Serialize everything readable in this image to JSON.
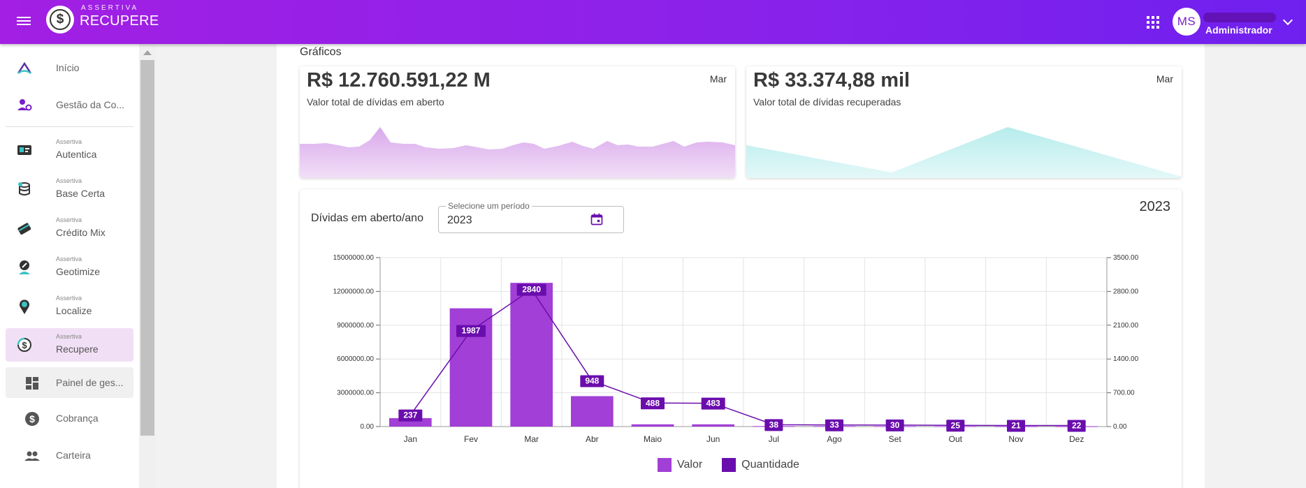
{
  "header": {
    "brand_top": "ASSERTIVA",
    "brand_main": "RECUPERE",
    "avatar_initials": "MS",
    "user_role": "Administrador"
  },
  "sidebar": {
    "items": [
      {
        "label": "Início",
        "icon": "home-chevron-icon"
      },
      {
        "label": "Gestão da Co...",
        "icon": "user-settings-icon"
      },
      {
        "small": "Assertiva",
        "label": "Autentica",
        "icon": "id-card-icon"
      },
      {
        "small": "Assertiva",
        "label": "Base Certa",
        "icon": "database-icon"
      },
      {
        "small": "Assertiva",
        "label": "Crédito Mix",
        "icon": "credit-card-icon"
      },
      {
        "small": "Assertiva",
        "label": "Geotimize",
        "icon": "compass-icon"
      },
      {
        "small": "Assertiva",
        "label": "Localize",
        "icon": "map-pin-icon"
      },
      {
        "small": "Assertiva",
        "label": "Recupere",
        "icon": "dollar-coin-icon"
      },
      {
        "label": "Painel de ges...",
        "icon": "dashboard-icon"
      },
      {
        "label": "Cobrança",
        "icon": "money-icon"
      },
      {
        "label": "Carteira",
        "icon": "people-icon"
      }
    ]
  },
  "main": {
    "section_title": "Gráficos",
    "card_open": {
      "value": "R$ 12.760.591,22 M",
      "label": "Valor total de dívidas em aberto",
      "month": "Mar"
    },
    "card_recovered": {
      "value": "R$ 33.374,88 mil",
      "label": "Valor total de dívidas recuperadas",
      "month": "Mar"
    },
    "chart_panel": {
      "title": "Dívidas em aberto/ano",
      "period_label": "Selecione um período",
      "period_value": "2023",
      "year": "2023"
    }
  },
  "colors": {
    "accent": "#a13fd6",
    "quantity": "#6a0dad",
    "spark_purple": "#d9a8ec",
    "spark_teal": "#b7ecec"
  },
  "chart_data": {
    "type": "bar",
    "categories": [
      "Jan",
      "Fev",
      "Mar",
      "Abr",
      "Maio",
      "Jun",
      "Jul",
      "Ago",
      "Set",
      "Out",
      "Nov",
      "Dez"
    ],
    "series": [
      {
        "name": "Valor",
        "type": "bar",
        "axis": "left",
        "values": [
          750000,
          10500000,
          12760591,
          2700000,
          200000,
          200000,
          40000,
          40000,
          35000,
          30000,
          25000,
          25000
        ]
      },
      {
        "name": "Quantidade",
        "type": "line",
        "axis": "right",
        "values": [
          237,
          1987,
          2840,
          948,
          488,
          483,
          38,
          33,
          30,
          25,
          21,
          22
        ]
      }
    ],
    "yticks_left": [
      "0.00",
      "3000000.00",
      "6000000.00",
      "9000000.00",
      "12000000.00",
      "15000000.00"
    ],
    "yticks_right": [
      "0.00",
      "700.00",
      "1400.00",
      "2100.00",
      "2800.00",
      "3500.00"
    ],
    "ylim_left": [
      0,
      15000000
    ],
    "ylim_right": [
      0,
      3500
    ],
    "grid": true,
    "legend": "bottom-center"
  }
}
